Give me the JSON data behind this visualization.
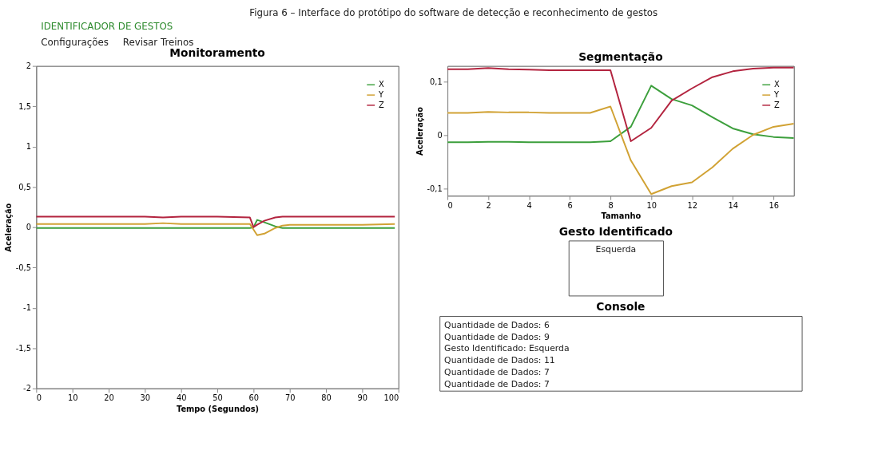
{
  "chart_data": [
    {
      "type": "other",
      "annotations": [
        "Figura 6 – Interface do protótipo do software de detecção e reconhecimento de gestos",
        "IDENTIFICADOR DE GESTOS",
        "Configurações",
        "Revisar Treinos"
      ]
    },
    {
      "type": "line",
      "title": "Monitoramento",
      "xlabel": "Tempo (Segundos)",
      "ylabel": "Aceleração",
      "xlim": [
        0,
        100
      ],
      "xticks": [
        0,
        10,
        20,
        30,
        40,
        50,
        60,
        70,
        80,
        90,
        100
      ],
      "ylim": [
        -2,
        2
      ],
      "yticks": [
        -2,
        {
          "value": -1.5,
          "label": "-1,5"
        },
        -1,
        {
          "value": -0.5,
          "label": "-0,5"
        },
        0,
        {
          "value": 0.5,
          "label": "0,5"
        },
        1,
        {
          "value": 1.5,
          "label": "1,5"
        },
        2
      ],
      "legend": "top right",
      "marker": "none",
      "line_style": "solid",
      "x": [
        0,
        10,
        20,
        30,
        35,
        40,
        50,
        59,
        60,
        61,
        63,
        66,
        68,
        70,
        80,
        90,
        99
      ],
      "series": [
        {
          "name": "X",
          "color": "#3c9f3c",
          "values": [
            -0.01,
            -0.01,
            -0.01,
            -0.01,
            -0.01,
            -0.01,
            -0.01,
            -0.01,
            0.0,
            0.09,
            0.06,
            0.01,
            -0.01,
            -0.01,
            -0.01,
            -0.01,
            -0.01
          ]
        },
        {
          "name": "Y",
          "color": "#d1a234",
          "values": [
            0.04,
            0.04,
            0.04,
            0.04,
            0.05,
            0.04,
            0.04,
            0.04,
            -0.03,
            -0.1,
            -0.08,
            -0.01,
            0.02,
            0.03,
            0.03,
            0.03,
            0.04
          ]
        },
        {
          "name": "Z",
          "color": "#b3243f",
          "values": [
            0.13,
            0.13,
            0.13,
            0.13,
            0.12,
            0.13,
            0.13,
            0.12,
            0.0,
            0.03,
            0.08,
            0.12,
            0.13,
            0.13,
            0.13,
            0.13,
            0.13
          ]
        }
      ]
    },
    {
      "type": "line",
      "title": "Segmentação",
      "xlabel": "Tamanho",
      "ylabel": "Aceleração",
      "xlim": [
        0,
        17
      ],
      "xticks": [
        0,
        2,
        4,
        6,
        8,
        10,
        12,
        14,
        16
      ],
      "ylim": [
        -0.113,
        0.13
      ],
      "yticks": [
        {
          "value": -0.1,
          "label": "-0,1"
        },
        0,
        {
          "value": 0.1,
          "label": "0,1"
        }
      ],
      "legend": "top right",
      "marker": "none",
      "line_style": "solid",
      "x": [
        0,
        1,
        2,
        3,
        4,
        5,
        6,
        7,
        8,
        9,
        10,
        11,
        12,
        13,
        14,
        15,
        16,
        17
      ],
      "series": [
        {
          "name": "X",
          "color": "#3c9f3c",
          "values": [
            -0.013,
            -0.013,
            -0.012,
            -0.012,
            -0.013,
            -0.013,
            -0.013,
            -0.013,
            -0.011,
            0.016,
            0.093,
            0.068,
            0.056,
            0.034,
            0.013,
            0.002,
            -0.003,
            -0.005
          ]
        },
        {
          "name": "Y",
          "color": "#d1a234",
          "values": [
            0.042,
            0.042,
            0.044,
            0.043,
            0.043,
            0.042,
            0.042,
            0.042,
            0.054,
            -0.047,
            -0.11,
            -0.095,
            -0.088,
            -0.06,
            -0.025,
            0.001,
            0.016,
            0.022
          ]
        },
        {
          "name": "Z",
          "color": "#b3243f",
          "values": [
            0.124,
            0.124,
            0.126,
            0.124,
            0.123,
            0.122,
            0.122,
            0.122,
            0.122,
            -0.011,
            0.014,
            0.065,
            0.088,
            0.109,
            0.12,
            0.125,
            0.127,
            0.127
          ]
        }
      ]
    },
    {
      "type": "other",
      "title": "Gesto Identificado",
      "annotations": [
        "Esquerda"
      ]
    },
    {
      "type": "other",
      "title": "Console",
      "annotations": [
        "Quantidade de Dados: 6",
        "Quantidade de Dados: 9",
        "Gesto Identificado: Esquerda",
        "Quantidade de Dados: 11",
        "Quantidade de Dados: 7",
        "Quantidade de Dados: 7"
      ]
    }
  ]
}
